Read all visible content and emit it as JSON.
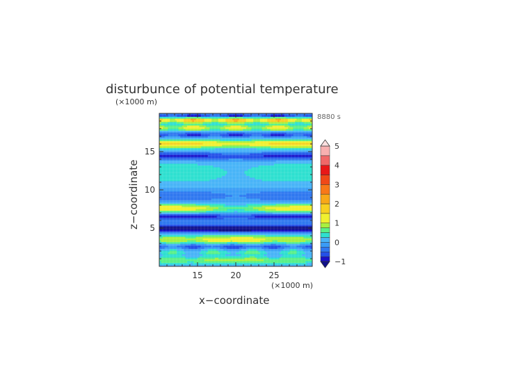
{
  "chart_data": {
    "type": "heatmap",
    "title": "disturbunce of potential temperature",
    "xlabel": "x−coordinate",
    "ylabel": "z−coordinate",
    "x_unit": "(×1000 m)",
    "y_unit": "(×1000 m)",
    "time_label": "8880 s",
    "xlim": [
      10,
      30
    ],
    "ylim": [
      0,
      20
    ],
    "x_ticks": [
      "15",
      "20",
      "25"
    ],
    "y_ticks": [
      "5",
      "10",
      "15"
    ],
    "colorbar": {
      "ticks": [
        "−1",
        "0",
        "1",
        "2",
        "3",
        "4",
        "5"
      ],
      "levels": [
        -1,
        -0.75,
        -0.5,
        -0.25,
        0,
        0.25,
        0.5,
        0.75,
        1,
        1.5,
        2,
        2.5,
        3,
        3.5,
        4,
        4.5,
        5
      ],
      "colors": [
        "#1a10c8",
        "#2450e8",
        "#2f78f0",
        "#3a9cf6",
        "#48b4f8",
        "#2ee0d0",
        "#58f088",
        "#a8f040",
        "#f0f030",
        "#f8d020",
        "#f8a818",
        "#f87818",
        "#f04818",
        "#e81818",
        "#f06868",
        "#f8b0b0"
      ]
    }
  }
}
